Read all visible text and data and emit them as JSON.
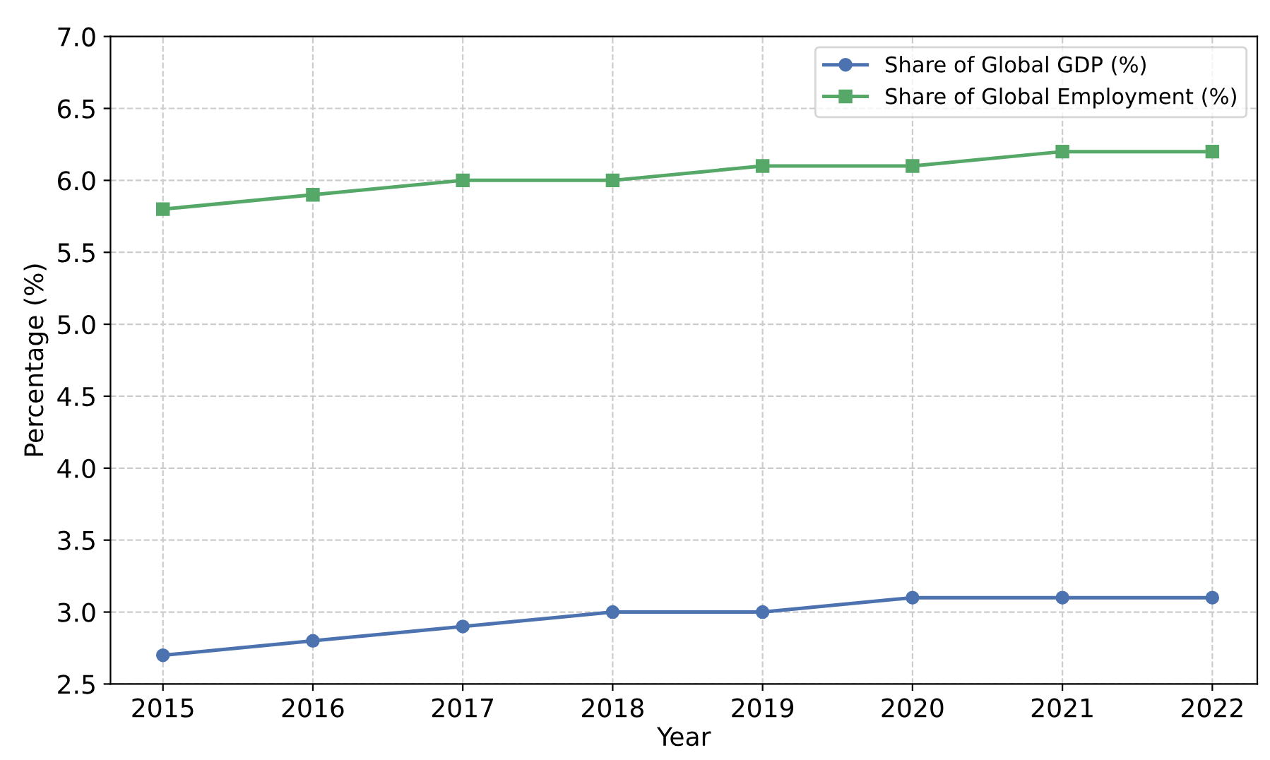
{
  "chart_data": {
    "type": "line",
    "xlabel": "Year",
    "ylabel": "Percentage (%)",
    "x": [
      2015,
      2016,
      2017,
      2018,
      2019,
      2020,
      2021,
      2022
    ],
    "series": [
      {
        "name": "Share of Global GDP (%)",
        "color": "#4c72b0",
        "marker": "circle",
        "values": [
          2.7,
          2.8,
          2.9,
          3.0,
          3.0,
          3.1,
          3.1,
          3.1
        ]
      },
      {
        "name": "Share of Global Employment (%)",
        "color": "#55a868",
        "marker": "square",
        "values": [
          5.8,
          5.9,
          6.0,
          6.0,
          6.1,
          6.1,
          6.2,
          6.2
        ]
      }
    ],
    "xlim": [
      2014.65,
      2022.3
    ],
    "xticks": [
      2015,
      2016,
      2017,
      2018,
      2019,
      2020,
      2021,
      2022
    ],
    "ylim": [
      2.5,
      7.0
    ],
    "yticks": [
      {
        "value": 2.5,
        "label": "2.5"
      },
      {
        "value": 3.0,
        "label": "3.0"
      },
      {
        "value": 3.5,
        "label": "3.5"
      },
      {
        "value": 4.0,
        "label": "4.0"
      },
      {
        "value": 4.5,
        "label": "4.5"
      },
      {
        "value": 5.0,
        "label": "5.0"
      },
      {
        "value": 5.5,
        "label": "5.5"
      },
      {
        "value": 6.0,
        "label": "6.0"
      },
      {
        "value": 6.5,
        "label": "6.5"
      },
      {
        "value": 7.0,
        "label": "7.0"
      }
    ],
    "grid": true,
    "line_style": "solid",
    "legend": "top right"
  }
}
